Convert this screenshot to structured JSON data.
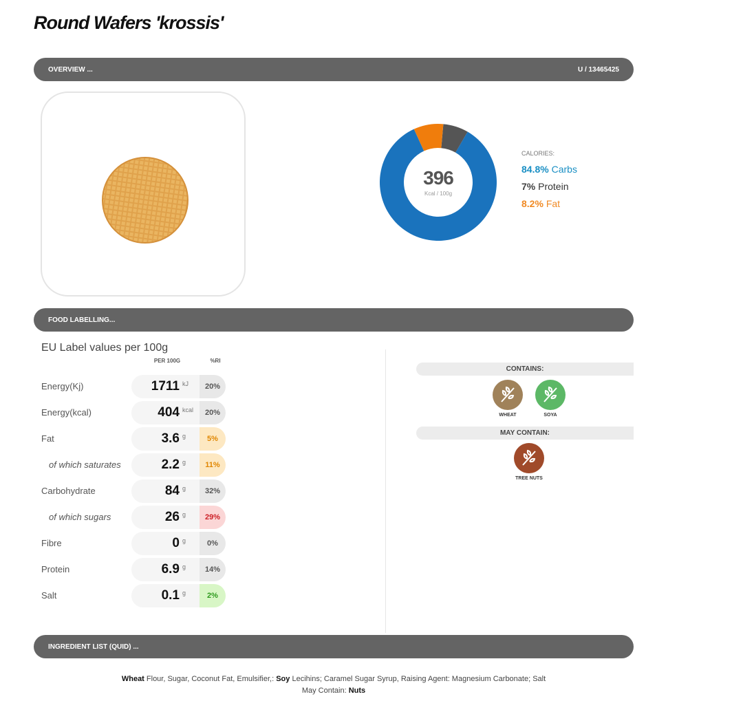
{
  "title": "Round Wafers 'krossis'",
  "overview": {
    "heading": "OVERVIEW ...",
    "code": "U / 13465425"
  },
  "calories": {
    "total": 396,
    "unit": "Kcal / 100g",
    "heading": "CALORIES:",
    "items": [
      {
        "value": 84.8,
        "value_label": "84.8%",
        "name": "Carbs",
        "color": "#1a73bd",
        "text_color": "#1a8fc4"
      },
      {
        "value": 7,
        "value_label": "7%",
        "name": "Protein",
        "color": "#555555",
        "text_color": "#444444"
      },
      {
        "value": 8.2,
        "value_label": "8.2%",
        "name": "Fat",
        "color": "#f07d0c",
        "text_color": "#f08a24"
      }
    ]
  },
  "labelling": {
    "heading": "FOOD LABELLING...",
    "subtitle": "EU Label values per 100g",
    "col_amount": "PER 100G",
    "col_ri": "%RI",
    "rows": [
      {
        "label": "Energy(Kj)",
        "value": 1711,
        "unit": "kJ",
        "ri": "20%",
        "ri_bg": "#e8e8e8",
        "ri_color": "#555555",
        "indent": false
      },
      {
        "label": "Energy(kcal)",
        "value": 404,
        "unit": "kcal",
        "ri": "20%",
        "ri_bg": "#e8e8e8",
        "ri_color": "#555555",
        "indent": false
      },
      {
        "label": "Fat",
        "value": 3.6,
        "unit": "g",
        "ri": "5%",
        "ri_bg": "#fde8c2",
        "ri_color": "#e08600",
        "indent": false
      },
      {
        "label": "of which saturates",
        "value": 2.2,
        "unit": "g",
        "ri": "11%",
        "ri_bg": "#fde8c2",
        "ri_color": "#e08600",
        "indent": true
      },
      {
        "label": "Carbohydrate",
        "value": 84,
        "unit": "g",
        "ri": "32%",
        "ri_bg": "#e8e8e8",
        "ri_color": "#555555",
        "indent": false
      },
      {
        "label": "of which sugars",
        "value": 26,
        "unit": "g",
        "ri": "29%",
        "ri_bg": "#fbd6d6",
        "ri_color": "#cc1f27",
        "indent": true
      },
      {
        "label": "Fibre",
        "value": 0,
        "unit": "g",
        "ri": "0%",
        "ri_bg": "#e8e8e8",
        "ri_color": "#555555",
        "indent": false
      },
      {
        "label": "Protein",
        "value": 6.9,
        "unit": "g",
        "ri": "14%",
        "ri_bg": "#e8e8e8",
        "ri_color": "#555555",
        "indent": false
      },
      {
        "label": "Salt",
        "value": 0.1,
        "unit": "g",
        "ri": "2%",
        "ri_bg": "#d8f6c6",
        "ri_color": "#2e9a1e",
        "indent": false
      }
    ]
  },
  "allergens": {
    "contains_heading": "CONTAINS:",
    "may_contain_heading": "MAY CONTAIN:",
    "contains": [
      {
        "name": "WHEAT",
        "color": "#a0825a"
      },
      {
        "name": "SOYA",
        "color": "#5cb866"
      }
    ],
    "may_contain": [
      {
        "name": "TREE NUTS",
        "color": "#a04a2a"
      }
    ]
  },
  "ingredients": {
    "heading": "INGREDIENT LIST (QUID) ...",
    "line1": [
      {
        "text": "Wheat",
        "bold": true
      },
      {
        "text": " Flour, Sugar, Coconut Fat, Emulsifier,: ",
        "bold": false
      },
      {
        "text": "Soy",
        "bold": true
      },
      {
        "text": " Lecihins; Caramel Sugar Syrup, Raising Agent: Magnesium Carbonate; Salt",
        "bold": false
      }
    ],
    "line2": [
      {
        "text": "May Contain: ",
        "bold": false
      },
      {
        "text": "Nuts",
        "bold": true
      }
    ]
  }
}
